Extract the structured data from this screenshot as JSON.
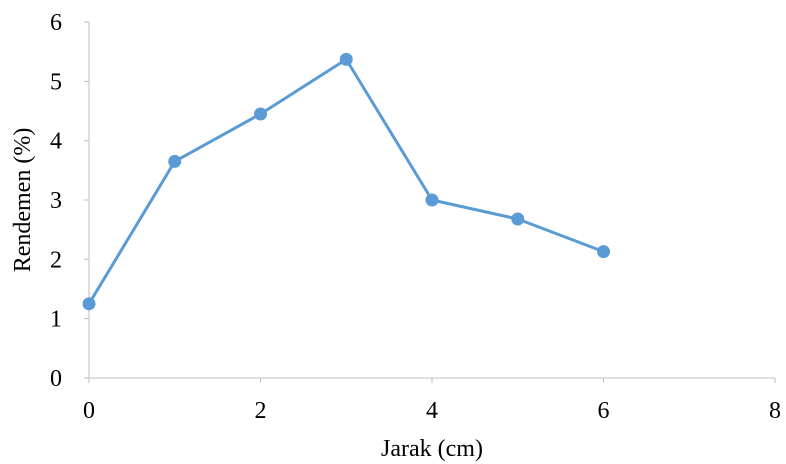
{
  "chart_data": {
    "type": "scatter",
    "mode": "lines+markers",
    "xlabel": "Jarak (cm)",
    "ylabel": "Rendemen (%)",
    "xlim": [
      0,
      8
    ],
    "ylim": [
      0,
      6
    ],
    "xticks": [
      0,
      2,
      4,
      6,
      8
    ],
    "yticks": [
      0,
      1,
      2,
      3,
      4,
      5,
      6
    ],
    "grid": false,
    "legend": "none",
    "series": [
      {
        "color": "#5b9bd5",
        "x": [
          0,
          1,
          2,
          3,
          4,
          5,
          6
        ],
        "y": [
          1.25,
          3.65,
          4.45,
          5.37,
          3.0,
          2.68,
          2.13
        ]
      }
    ]
  }
}
